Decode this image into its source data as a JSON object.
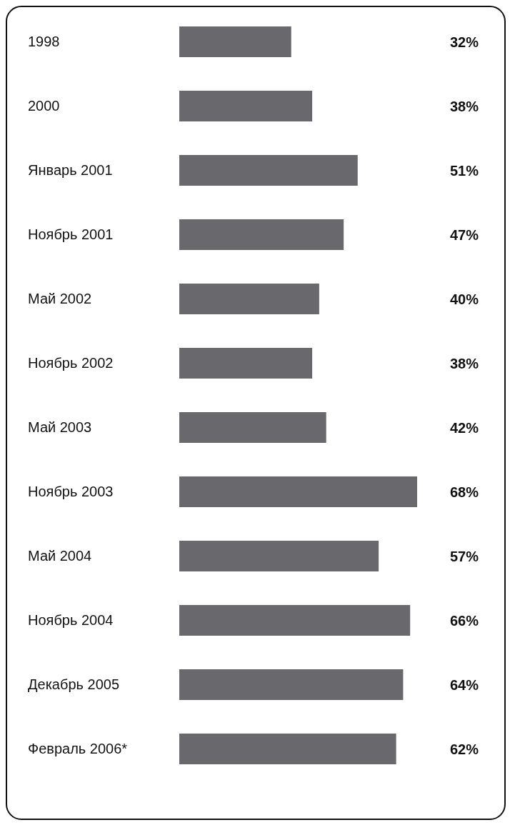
{
  "chart_data": {
    "type": "bar",
    "orientation": "horizontal",
    "categories": [
      "1998",
      "2000",
      "Январь 2001",
      "Ноябрь 2001",
      "Май 2002",
      "Ноябрь 2002",
      "Май 2003",
      "Ноябрь 2003",
      "Май 2004",
      "Ноябрь 2004",
      "Декабрь 2005",
      "Февраль 2006*"
    ],
    "values": [
      32,
      38,
      51,
      47,
      40,
      38,
      42,
      68,
      57,
      66,
      64,
      62
    ],
    "value_labels": [
      "32%",
      "38%",
      "51%",
      "47%",
      "40%",
      "38%",
      "42%",
      "68%",
      "57%",
      "66%",
      "64%",
      "62%"
    ],
    "color": "#69686d",
    "grid": false,
    "legend": false
  }
}
